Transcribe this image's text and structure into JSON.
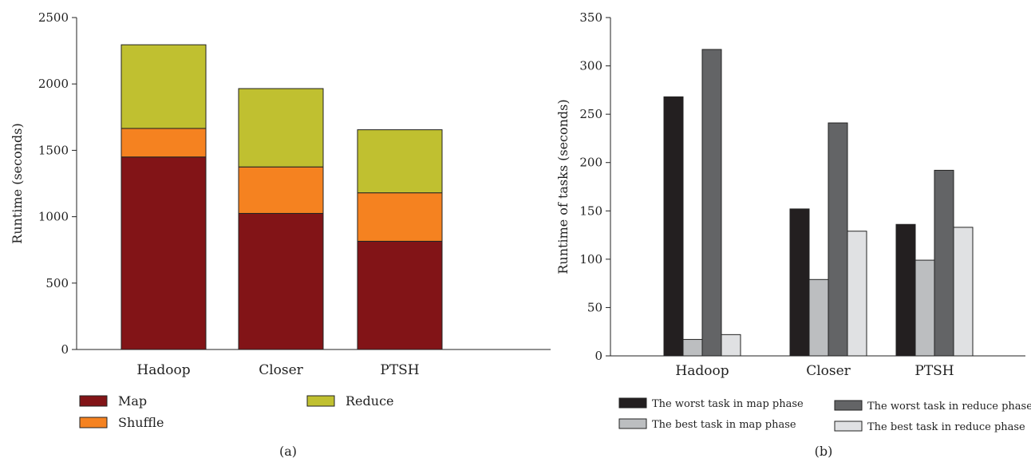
{
  "chart_data": [
    {
      "type": "bar",
      "stacked": true,
      "panel_label": "(a)",
      "ylabel": "Runtime (seconds)",
      "xlabel": "",
      "ylim": [
        0,
        2500
      ],
      "yticks": [
        0,
        500,
        1000,
        1500,
        2000,
        2500
      ],
      "categories": [
        "Hadoop",
        "Closer",
        "PTSH"
      ],
      "series": [
        {
          "name": "Map",
          "color": "#821417",
          "values": [
            1450,
            1025,
            815
          ]
        },
        {
          "name": "Shuffle",
          "color": "#f58220",
          "values": [
            215,
            350,
            365
          ]
        },
        {
          "name": "Reduce",
          "color": "#c0c030",
          "values": [
            630,
            590,
            475
          ]
        }
      ],
      "legend_position": "bottom",
      "grid": false
    },
    {
      "type": "bar",
      "stacked": false,
      "panel_label": "(b)",
      "ylabel": "Runtime of tasks (seconds)",
      "xlabel": "",
      "ylim": [
        0,
        350
      ],
      "yticks": [
        0,
        50,
        100,
        150,
        200,
        250,
        300,
        350
      ],
      "categories": [
        "Hadoop",
        "Closer",
        "PTSH"
      ],
      "series": [
        {
          "name": "The worst task in map phase",
          "color": "#231f20",
          "values": [
            268,
            152,
            136
          ]
        },
        {
          "name": "The best task in map phase",
          "color": "#bcbec0",
          "values": [
            17,
            79,
            99
          ]
        },
        {
          "name": "The worst task in reduce phase",
          "color": "#636466",
          "values": [
            317,
            241,
            192
          ]
        },
        {
          "name": "The best task in reduce phase",
          "color": "#e0e1e3",
          "values": [
            22,
            129,
            133
          ]
        }
      ],
      "legend_position": "bottom",
      "grid": false
    }
  ]
}
